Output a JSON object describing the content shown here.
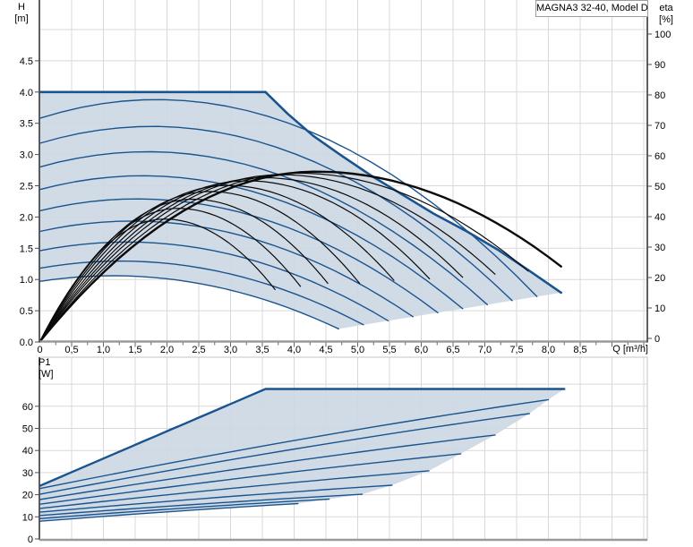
{
  "title_box": {
    "label": "MAGNA3 32-40, Model D"
  },
  "axis_labels": {
    "head_y": "H",
    "head_y_unit": "[m]",
    "eff_y": "eta",
    "eff_y_unit": "[%]",
    "power_y": "P1",
    "power_y_unit": "[W]",
    "x": "Q [m³/h]"
  },
  "chart_data": [
    {
      "type": "line",
      "id": "head-efficiency-chart",
      "title": "MAGNA3 32-40, Model D",
      "xlabel": "Q [m³/h]",
      "ylabel": "H [m]",
      "y2label": "eta [%]",
      "grid": true,
      "xlim": [
        0,
        9.56
      ],
      "ylim": [
        0,
        5.46
      ],
      "y2lim": [
        0,
        111
      ],
      "x_ticks": [
        0,
        0.5,
        1.0,
        1.5,
        2.0,
        2.5,
        3.0,
        3.5,
        4.0,
        4.5,
        5.0,
        5.5,
        6.0,
        6.5,
        7.0,
        7.5,
        8.0,
        8.5
      ],
      "x_tick_labels": [
        "0",
        "0,5",
        "1,0",
        "1,5",
        "2,0",
        "2,5",
        "3,0",
        "3,5",
        "4,0",
        "4,5",
        "5,0",
        "5,5",
        "6,0",
        "6,5",
        "7,0",
        "7,5",
        "8,0",
        "8,5"
      ],
      "x_minor_tick_step": 0.25,
      "y_ticks": [
        0,
        0.5,
        1.0,
        1.5,
        2.0,
        2.5,
        3.0,
        3.5,
        4.0,
        4.5
      ],
      "y_tick_labels": [
        "0.0",
        "0.5",
        "1.0",
        "1.5",
        "2.0",
        "2.5",
        "3.0",
        "3.5",
        "4.0",
        "4.5"
      ],
      "y2_ticks": [
        0,
        10,
        20,
        30,
        40,
        50,
        60,
        70,
        80,
        90,
        100
      ],
      "y2_tick_labels": [
        "0",
        "10",
        "20",
        "30",
        "40",
        "50",
        "60",
        "70",
        "80",
        "90",
        "100"
      ],
      "envelope": {
        "max_head": 4.0,
        "flat_end_q": 3.55,
        "max_curve": [
          [
            3.55,
            4.0
          ],
          [
            3.9,
            3.65
          ],
          [
            4.3,
            3.3
          ],
          [
            4.72,
            3.0
          ],
          [
            5.2,
            2.67
          ],
          [
            5.7,
            2.36
          ],
          [
            6.2,
            2.05
          ],
          [
            6.7,
            1.78
          ],
          [
            7.2,
            1.48
          ],
          [
            7.7,
            1.14
          ],
          [
            8.2,
            0.79
          ]
        ],
        "duty_edge": [
          [
            4.7,
            0.21
          ],
          [
            8.2,
            0.79
          ]
        ]
      },
      "speed_curves": [
        {
          "h0": 3.58,
          "qe": 7.82,
          "he": 0.727,
          "dh": 0.3
        },
        {
          "h0": 3.18,
          "qe": 7.43,
          "he": 0.662,
          "dh": 0.27
        },
        {
          "h0": 2.8,
          "qe": 7.04,
          "he": 0.598,
          "dh": 0.245
        },
        {
          "h0": 2.44,
          "qe": 6.65,
          "he": 0.533,
          "dh": 0.22
        },
        {
          "h0": 2.1,
          "qe": 6.26,
          "he": 0.469,
          "dh": 0.19
        },
        {
          "h0": 1.77,
          "qe": 5.87,
          "he": 0.404,
          "dh": 0.165
        },
        {
          "h0": 1.46,
          "qe": 5.48,
          "he": 0.339,
          "dh": 0.14
        },
        {
          "h0": 1.18,
          "qe": 5.09,
          "he": 0.275,
          "dh": 0.115
        },
        {
          "h0": 0.97,
          "qe": 4.7,
          "he": 0.21,
          "dh": 0.09
        }
      ],
      "efficiency_curves": [
        {
          "q_end": 3.7,
          "eta_end": 17.0,
          "eta_peak": 40.0,
          "q_peak": 1.96,
          "thick": false
        },
        {
          "q_end": 4.1,
          "eta_end": 18.0,
          "eta_peak": 43.5,
          "q_peak": 2.17,
          "thick": false
        },
        {
          "q_end": 4.53,
          "eta_end": 19.0,
          "eta_peak": 46.5,
          "q_peak": 2.4,
          "thick": false
        },
        {
          "q_end": 5.03,
          "eta_end": 19.0,
          "eta_peak": 49.0,
          "q_peak": 2.67,
          "thick": false
        },
        {
          "q_end": 5.57,
          "eta_end": 20.0,
          "eta_peak": 51.0,
          "q_peak": 2.95,
          "thick": false
        },
        {
          "q_end": 6.13,
          "eta_end": 20.5,
          "eta_peak": 52.5,
          "q_peak": 3.25,
          "thick": false
        },
        {
          "q_end": 6.65,
          "eta_end": 21.0,
          "eta_peak": 53.5,
          "q_peak": 3.52,
          "thick": false
        },
        {
          "q_end": 7.16,
          "eta_end": 22.0,
          "eta_peak": 54.5,
          "q_peak": 3.79,
          "thick": false
        },
        {
          "q_end": 7.68,
          "eta_end": 23.0,
          "eta_peak": 55.0,
          "q_peak": 4.07,
          "thick": false
        },
        {
          "q_end": 8.2,
          "eta_end": 24.5,
          "eta_peak": 55.5,
          "q_peak": 4.35,
          "thick": true
        }
      ],
      "colors": {
        "fill": "#cdd8e4",
        "curve_blue": "#1a548f",
        "eff_black": "#0a0a0a",
        "grid": "#d9d9d9",
        "axis_dark": "#4d4d4d",
        "axis_gray": "#9a9a9a"
      }
    },
    {
      "type": "line",
      "id": "power-chart",
      "ylabel": "P1 [W]",
      "grid": true,
      "xlim": [
        0,
        9.56
      ],
      "ylim": [
        0,
        82
      ],
      "y_ticks": [
        0,
        10,
        20,
        30,
        40,
        50,
        60
      ],
      "y_tick_labels": [
        "0",
        "10",
        "20",
        "30",
        "40",
        "50",
        "60"
      ],
      "max_curve": {
        "p0": 24,
        "knee": [
          3.55,
          67.8
        ],
        "end_q": 8.25,
        "plateau": 67.8
      },
      "power_curves": [
        {
          "p0": 8.0,
          "qe": 4.06,
          "pe": 16.0
        },
        {
          "p0": 9.2,
          "qe": 4.55,
          "pe": 18.0
        },
        {
          "p0": 10.6,
          "qe": 5.07,
          "pe": 20.2
        },
        {
          "p0": 12.1,
          "qe": 5.54,
          "pe": 24.3
        },
        {
          "p0": 13.8,
          "qe": 6.12,
          "pe": 30.8
        },
        {
          "p0": 15.7,
          "qe": 6.62,
          "pe": 38.5
        },
        {
          "p0": 17.8,
          "qe": 7.16,
          "pe": 47.0
        },
        {
          "p0": 20.2,
          "qe": 7.7,
          "pe": 56.7
        },
        {
          "p0": 22.8,
          "qe": 8.0,
          "pe": 63.0
        }
      ]
    }
  ]
}
